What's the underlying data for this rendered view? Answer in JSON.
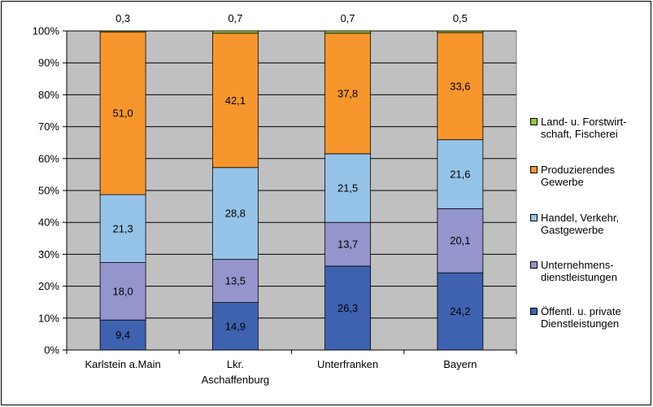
{
  "chart_data": {
    "type": "bar",
    "stacked": true,
    "percent_stacked": true,
    "categories": [
      "Karlstein a.Main",
      "Lkr.\nAschaffenburg",
      "Unterfranken",
      "Bayern"
    ],
    "series": [
      {
        "name": "Öffentl. u. private\nDienstleistungen",
        "color": "#3f62b0",
        "values": [
          9.4,
          14.9,
          26.3,
          24.2
        ],
        "labels": [
          "9,4",
          "14,9",
          "26,3",
          "24,2"
        ]
      },
      {
        "name": "Unternehmens-\ndienstleistungen",
        "color": "#9395cc",
        "values": [
          18.0,
          13.5,
          13.7,
          20.1
        ],
        "labels": [
          "18,0",
          "13,5",
          "13,7",
          "20,1"
        ]
      },
      {
        "name": "Handel, Verkehr,\nGastgewerbe",
        "color": "#96c3e8",
        "values": [
          21.3,
          28.8,
          21.5,
          21.6
        ],
        "labels": [
          "21,3",
          "28,8",
          "21,5",
          "21,6"
        ]
      },
      {
        "name": "Produzierendes\nGewerbe",
        "color": "#f7962d",
        "values": [
          51.0,
          42.1,
          37.8,
          33.6
        ],
        "labels": [
          "51,0",
          "42,1",
          "37,8",
          "33,6"
        ]
      },
      {
        "name": "Land- u. Forstwirt-\nschaft, Fischerei",
        "color": "#92c83e",
        "values": [
          0.3,
          0.7,
          0.7,
          0.5
        ],
        "labels": [
          "0,3",
          "0,7",
          "0,7",
          "0,5"
        ]
      }
    ],
    "y_ticks": [
      "0%",
      "10%",
      "20%",
      "30%",
      "40%",
      "50%",
      "60%",
      "70%",
      "80%",
      "90%",
      "100%"
    ],
    "ylim": [
      0,
      100
    ],
    "grid": true,
    "plot_background": "#c0c0c0",
    "legend_position": "right",
    "legend_order": [
      4,
      3,
      2,
      1,
      0
    ]
  }
}
